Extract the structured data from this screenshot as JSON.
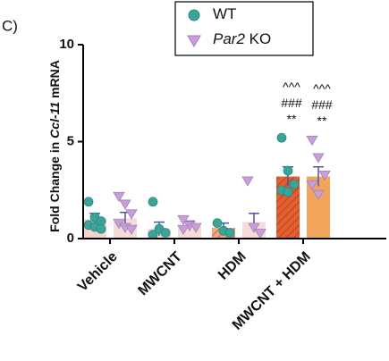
{
  "panel_label": "C)",
  "chart_data": {
    "type": "bar",
    "ylabel": "Fold Change in Ccl-11 mRNA",
    "categories": [
      "Vehicle",
      "MWCNT",
      "HDM",
      "MWCNT + HDM"
    ],
    "ylim": [
      0,
      10
    ],
    "yticks": [
      0,
      5,
      10
    ],
    "series": [
      {
        "name": "WT",
        "color": "#3aa39a",
        "marker": "circle",
        "values": [
          1.0,
          0.5,
          0.55,
          3.2
        ],
        "errors": [
          0.3,
          0.35,
          0.25,
          0.5
        ],
        "bar_colors": [
          "#f2d6cb",
          "#f2d6cb",
          "#f4a877",
          "#e2602f"
        ],
        "bar_hatch": [
          false,
          false,
          true,
          true
        ],
        "points": [
          [
            1.9,
            1.1,
            0.9,
            0.7,
            0.6,
            0.5
          ],
          [
            1.9,
            0.5,
            0.3,
            0.2
          ],
          [
            0.8,
            0.4,
            0.3
          ],
          [
            5.2,
            3.5,
            2.8,
            2.5,
            2.4
          ]
        ],
        "annotations": [
          null,
          null,
          null,
          [
            "^^^",
            "###",
            "**"
          ]
        ]
      },
      {
        "name": "Par2 KO",
        "color": "#c8a0d8",
        "marker": "triangle",
        "values": [
          1.05,
          0.65,
          0.85,
          3.2
        ],
        "errors": [
          0.3,
          0.25,
          0.45,
          0.5
        ],
        "bar_colors": [
          "#f4dcd8",
          "#f4dcd8",
          "#f4dcd8",
          "#f2a45a"
        ],
        "bar_hatch": [
          false,
          false,
          false,
          false
        ],
        "points": [
          [
            2.2,
            1.8,
            1.3,
            0.8,
            0.6,
            0.5
          ],
          [
            1.0,
            0.7,
            0.6,
            0.5
          ],
          [
            3.0,
            0.6,
            0.3
          ],
          [
            5.1,
            4.2,
            3.3,
            2.8,
            2.3
          ]
        ],
        "annotations": [
          null,
          null,
          null,
          [
            "^^^",
            "###",
            "**"
          ]
        ]
      }
    ],
    "error_color": "#4a56a6"
  }
}
